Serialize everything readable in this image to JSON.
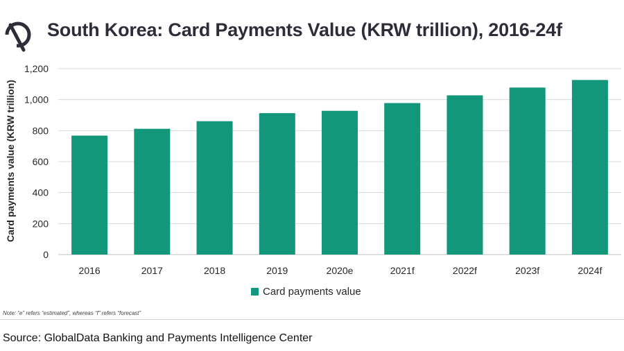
{
  "header": {
    "title": "South Korea: Card Payments Value (KRW trillion), 2016-24f",
    "logo_icon": "globaldata-logo-icon"
  },
  "chart_data": {
    "type": "bar",
    "title": "South Korea: Card Payments Value (KRW trillion), 2016-24f",
    "categories": [
      "2016",
      "2017",
      "2018",
      "2019",
      "2020e",
      "2021f",
      "2022f",
      "2023f",
      "2024f"
    ],
    "series": [
      {
        "name": "Card payments value",
        "values": [
          768,
          812,
          861,
          913,
          928,
          978,
          1028,
          1078,
          1127
        ],
        "color": "#13977a"
      }
    ],
    "xlabel": "",
    "ylabel": "Card payments value (KRW trillion)",
    "ylim": [
      0,
      1200
    ],
    "yticks": [
      "0",
      "200",
      "400",
      "600",
      "800",
      "1,000",
      "1,200"
    ],
    "grid": true,
    "legend": "bottom"
  },
  "footer": {
    "note": "Note: “e” refers “estimated”, whereas “f” refers “forecast”",
    "source": "Source: GlobalData Banking and Payments Intelligence Center"
  }
}
